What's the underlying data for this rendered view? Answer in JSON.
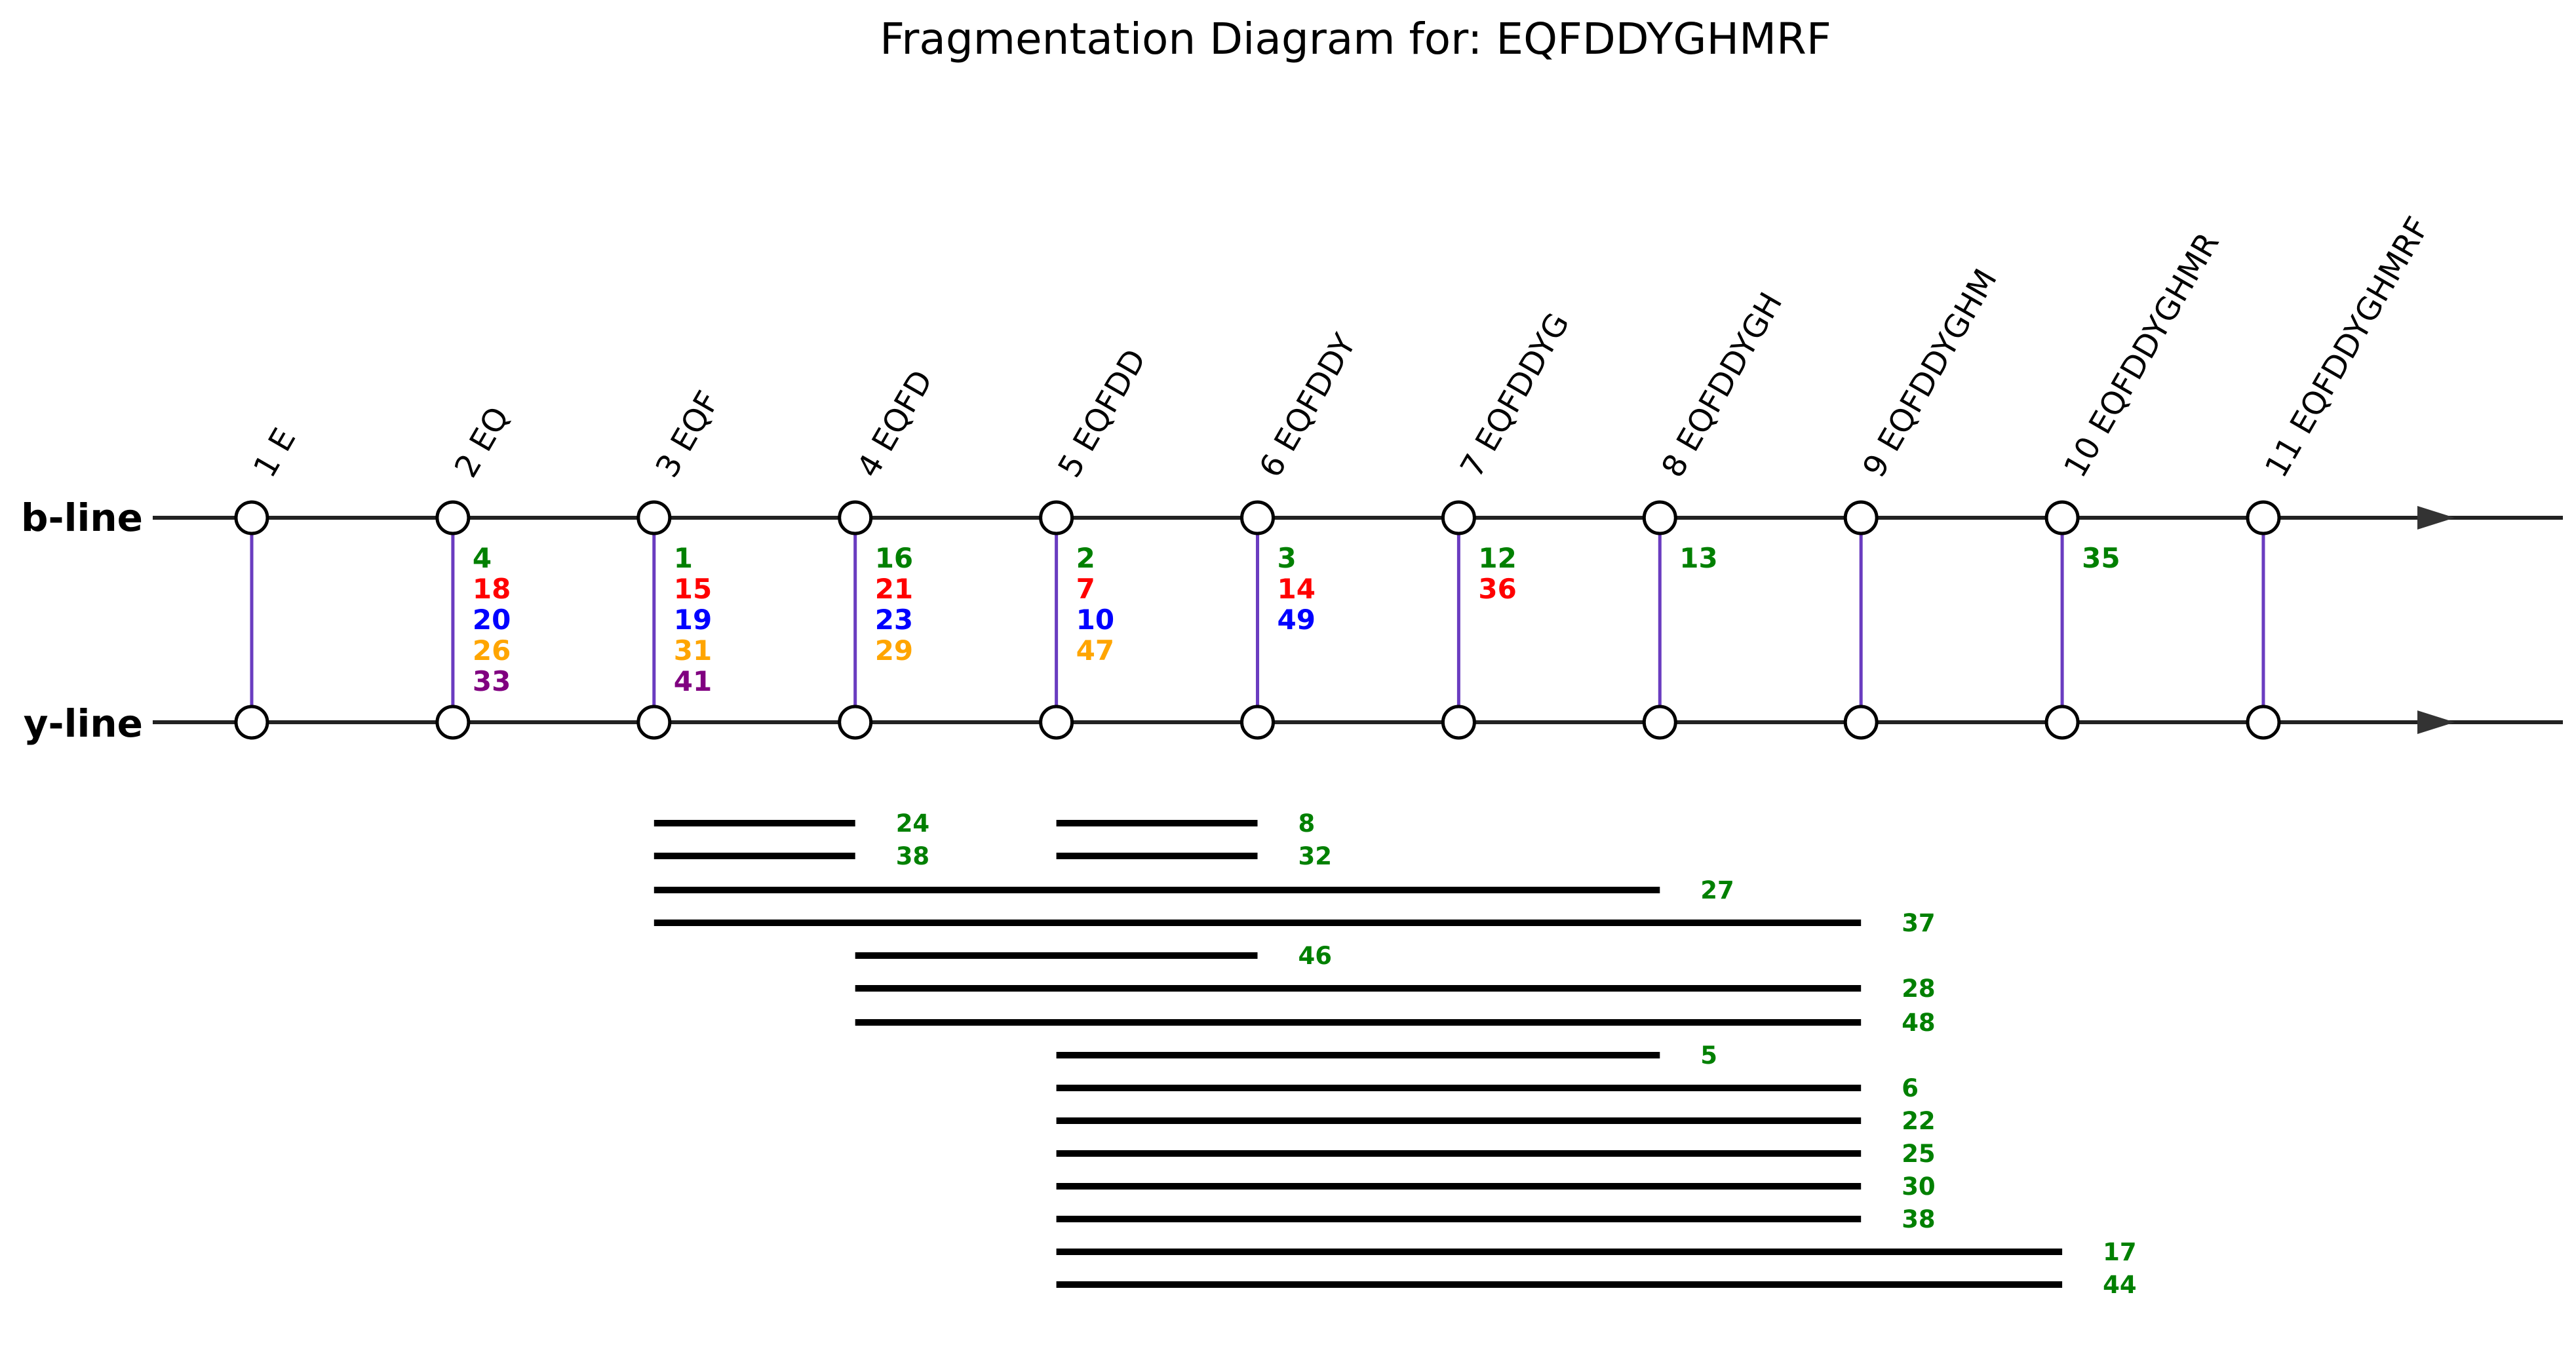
{
  "title": "Fragmentation Diagram for: EQFDDYGHMRF",
  "peptide": "EQFDDYGHMRF",
  "lines": {
    "b": "b-line",
    "y": "y-line"
  },
  "colors": {
    "axis": "#222222",
    "connector": "#6a3cc0",
    "span": "#000000",
    "node_fill": "#ffffff",
    "node_stroke": "#000000",
    "arrow": "#333333"
  },
  "fragments": [
    {
      "label": "1 E",
      "counts": []
    },
    {
      "label": "2 EQ",
      "counts": [
        {
          "value": "4",
          "color": "#008000"
        },
        {
          "value": "18",
          "color": "#ff0000"
        },
        {
          "value": "20",
          "color": "#0000ff"
        },
        {
          "value": "26",
          "color": "#ffa500"
        },
        {
          "value": "33",
          "color": "#800080"
        }
      ]
    },
    {
      "label": "3 EQF",
      "counts": [
        {
          "value": "1",
          "color": "#008000"
        },
        {
          "value": "15",
          "color": "#ff0000"
        },
        {
          "value": "19",
          "color": "#0000ff"
        },
        {
          "value": "31",
          "color": "#ffa500"
        },
        {
          "value": "41",
          "color": "#800080"
        }
      ]
    },
    {
      "label": "4 EQFD",
      "counts": [
        {
          "value": "16",
          "color": "#008000"
        },
        {
          "value": "21",
          "color": "#ff0000"
        },
        {
          "value": "23",
          "color": "#0000ff"
        },
        {
          "value": "29",
          "color": "#ffa500"
        }
      ]
    },
    {
      "label": "5 EQFDD",
      "counts": [
        {
          "value": "2",
          "color": "#008000"
        },
        {
          "value": "7",
          "color": "#ff0000"
        },
        {
          "value": "10",
          "color": "#0000ff"
        },
        {
          "value": "47",
          "color": "#ffa500"
        }
      ]
    },
    {
      "label": "6 EQFDDY",
      "counts": [
        {
          "value": "3",
          "color": "#008000"
        },
        {
          "value": "14",
          "color": "#ff0000"
        },
        {
          "value": "49",
          "color": "#0000ff"
        }
      ]
    },
    {
      "label": "7 EQFDDYG",
      "counts": [
        {
          "value": "12",
          "color": "#008000"
        },
        {
          "value": "36",
          "color": "#ff0000"
        }
      ]
    },
    {
      "label": "8 EQFDDYGH",
      "counts": [
        {
          "value": "13",
          "color": "#008000"
        }
      ]
    },
    {
      "label": "9 EQFDDYGHM",
      "counts": []
    },
    {
      "label": "10 EQFDDYGHMR",
      "counts": [
        {
          "value": "35",
          "color": "#008000"
        }
      ]
    },
    {
      "label": "11 EQFDDYGHMRF",
      "counts": []
    }
  ],
  "spans": [
    {
      "from": 3,
      "to": 4,
      "label": "24",
      "color": "#008000"
    },
    {
      "from": 3,
      "to": 4,
      "label": "38",
      "color": "#008000"
    },
    {
      "from": 5,
      "to": 6,
      "label": "8",
      "color": "#008000"
    },
    {
      "from": 5,
      "to": 6,
      "label": "32",
      "color": "#008000"
    },
    {
      "from": 3,
      "to": 8,
      "label": "27",
      "color": "#008000"
    },
    {
      "from": 3,
      "to": 9,
      "label": "37",
      "color": "#008000"
    },
    {
      "from": 4,
      "to": 6,
      "label": "46",
      "color": "#008000"
    },
    {
      "from": 4,
      "to": 9,
      "label": "28",
      "color": "#008000"
    },
    {
      "from": 4,
      "to": 9,
      "label": "48",
      "color": "#008000"
    },
    {
      "from": 5,
      "to": 8,
      "label": "5",
      "color": "#008000"
    },
    {
      "from": 5,
      "to": 9,
      "label": "6",
      "color": "#008000"
    },
    {
      "from": 5,
      "to": 9,
      "label": "22",
      "color": "#008000"
    },
    {
      "from": 5,
      "to": 9,
      "label": "25",
      "color": "#008000"
    },
    {
      "from": 5,
      "to": 9,
      "label": "30",
      "color": "#008000"
    },
    {
      "from": 5,
      "to": 9,
      "label": "38",
      "color": "#008000"
    },
    {
      "from": 5,
      "to": 10,
      "label": "17",
      "color": "#008000"
    },
    {
      "from": 5,
      "to": 10,
      "label": "44",
      "color": "#008000"
    }
  ]
}
